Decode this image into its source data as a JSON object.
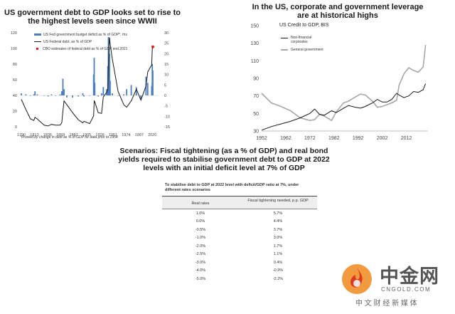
{
  "chart_left": {
    "title": "US government debt to GDP looks set to rise to the highest levels seen since WWII",
    "footnote": "*Proxied by change in debt as % of GDP for data prior to 1954",
    "colors": {
      "deficit": "#4a7fc1",
      "debt": "#1a1a1a",
      "cbo": "#e0201f"
    },
    "legend": [
      "US Fed government budget deficit as % of GDP*, rhs",
      "US Federal debt, as % of GDP",
      "CBO estimates of federal debt as % of GDP end 2021"
    ],
    "x_ticks": [
      "1790",
      "1813",
      "1836",
      "1859",
      "1882",
      "1905",
      "1928",
      "1951",
      "1974",
      "1997",
      "2020"
    ],
    "y_left_ticks": [
      "120",
      "100",
      "80",
      "60",
      "40",
      "20",
      "0"
    ],
    "y_right_ticks": [
      "30",
      "25",
      "20",
      "15",
      "10",
      "5",
      "0",
      "-5",
      "-10",
      "-15"
    ]
  },
  "chart_right": {
    "title": "In the US, corporate and government leverage are at historical highs",
    "subtitle": "US Credit to GDP, BIS",
    "colors": {
      "corporate": "#1a1a1a",
      "government": "#a8a8a8"
    },
    "x_ticks": [
      "1952",
      "1962",
      "1972",
      "1982",
      "1992",
      "2002",
      "2012"
    ],
    "y_ticks": [
      "150",
      "130",
      "110",
      "90",
      "70",
      "50",
      "30"
    ]
  },
  "chart_data": [
    {
      "type": "bar",
      "title": "US government debt to GDP looks set to rise to the highest levels seen since WWII",
      "x": [
        1790,
        1798,
        1806,
        1812,
        1814,
        1818,
        1830,
        1837,
        1843,
        1850,
        1858,
        1861,
        1863,
        1865,
        1870,
        1880,
        1890,
        1898,
        1900,
        1910,
        1917,
        1918,
        1919,
        1925,
        1931,
        1934,
        1940,
        1942,
        1943,
        1944,
        1945,
        1946,
        1950,
        1960,
        1970,
        1975,
        1983,
        1992,
        2000,
        2009,
        2012,
        2019,
        2020,
        2021
      ],
      "series": [
        {
          "name": "US Fed government budget deficit as % of GDP*, rhs",
          "values": [
            1,
            0.5,
            0,
            0.5,
            2,
            0.5,
            0,
            -0.5,
            0.5,
            0,
            0.5,
            2,
            8,
            3,
            -1,
            -1,
            -0.5,
            1,
            -0.5,
            0,
            10,
            18,
            6,
            -0.5,
            1,
            4,
            3,
            14,
            28,
            22,
            20,
            7,
            1,
            0,
            0.5,
            3,
            5,
            4,
            -2,
            9,
            6,
            4.5,
            15,
            12
          ]
        },
        {
          "name": "US Federal debt, as % of GDP",
          "values": [
            35,
            22,
            10,
            8,
            12,
            10,
            2,
            1,
            3,
            2,
            2,
            5,
            20,
            33,
            28,
            18,
            9,
            5,
            7,
            4,
            14,
            33,
            32,
            18,
            17,
            38,
            44,
            48,
            80,
            100,
            114,
            106,
            86,
            45,
            28,
            25,
            33,
            48,
            34,
            52,
            70,
            79,
            100,
            100
          ]
        }
      ],
      "annotations": [
        {
          "label": "CBO estimates of federal debt as % of GDP end 2021",
          "x": 2021,
          "y": 102
        }
      ],
      "ylim": [
        0,
        120
      ],
      "ylim_right": [
        -15,
        30
      ]
    },
    {
      "type": "line",
      "title": "In the US, corporate and government leverage are at historical highs",
      "subtitle": "US Credit to GDP, BIS",
      "x": [
        1952,
        1956,
        1960,
        1964,
        1968,
        1972,
        1974,
        1976,
        1978,
        1981,
        1983,
        1986,
        1988,
        1991,
        1993,
        1995,
        1998,
        2000,
        2002,
        2004,
        2006,
        2008,
        2009,
        2011,
        2013,
        2015,
        2017,
        2019,
        2020
      ],
      "series": [
        {
          "name": "Non-financial corporates",
          "values": [
            31,
            35,
            38,
            41,
            45,
            50,
            55,
            49,
            48,
            53,
            51,
            56,
            59,
            57,
            56,
            58,
            62,
            66,
            63,
            63,
            66,
            73,
            71,
            68,
            70,
            75,
            74,
            77,
            84
          ]
        },
        {
          "name": "General government",
          "values": [
            73,
            62,
            58,
            53,
            45,
            42,
            43,
            49,
            47,
            42,
            52,
            62,
            64,
            69,
            72,
            71,
            64,
            57,
            58,
            60,
            62,
            65,
            82,
            95,
            102,
            99,
            97,
            103,
            128
          ]
        }
      ],
      "xlim": [
        1952,
        2021
      ],
      "ylim": [
        30,
        150
      ]
    },
    {
      "type": "table",
      "title": "Scenarios: Fiscal tightening (as a % of GDP) and real bond yields required to stabilise government debt to GDP at 2022 levels with an initial deficit level at 7% of GDP",
      "subtitle": "To stabilise debt to GDP at 2022 level with deficit/GDP ratio at 7%, under different rates scenarios",
      "columns": [
        "Real rates",
        "Fiscal tightening needed, p.p. GDP"
      ],
      "rows": [
        [
          "1.0%",
          "5.7%"
        ],
        [
          "0.0%",
          "4.4%"
        ],
        [
          "-0.5%",
          "3.7%"
        ],
        [
          "-1.0%",
          "3.0%"
        ],
        [
          "-2.0%",
          "1.7%"
        ],
        [
          "-2.5%",
          "1.1%"
        ],
        [
          "-3.0%",
          "0.4%"
        ],
        [
          "-4.0%",
          "-0.9%"
        ],
        [
          "-5.0%",
          "-2.2%"
        ]
      ]
    }
  ],
  "table": {
    "title": "Scenarios: Fiscal tightening (as a % of GDP) and real bond yields required to stabilise government debt to GDP at 2022 levels with an initial deficit level at 7% of GDP",
    "header": "To stabilise debt to GDP at 2022 level with deficit/GDP ratio at 7%, under different rates scenarios",
    "col1": "Real rates",
    "col2": "Fiscal tightening needed, p.p. GDP"
  },
  "watermark": {
    "name": "中金网",
    "domain": "CNGOLD.COM",
    "slogan": "中 文 财 经 新 媒 体",
    "colors": {
      "orange": "#f08a1c",
      "red": "#d9301f"
    }
  }
}
